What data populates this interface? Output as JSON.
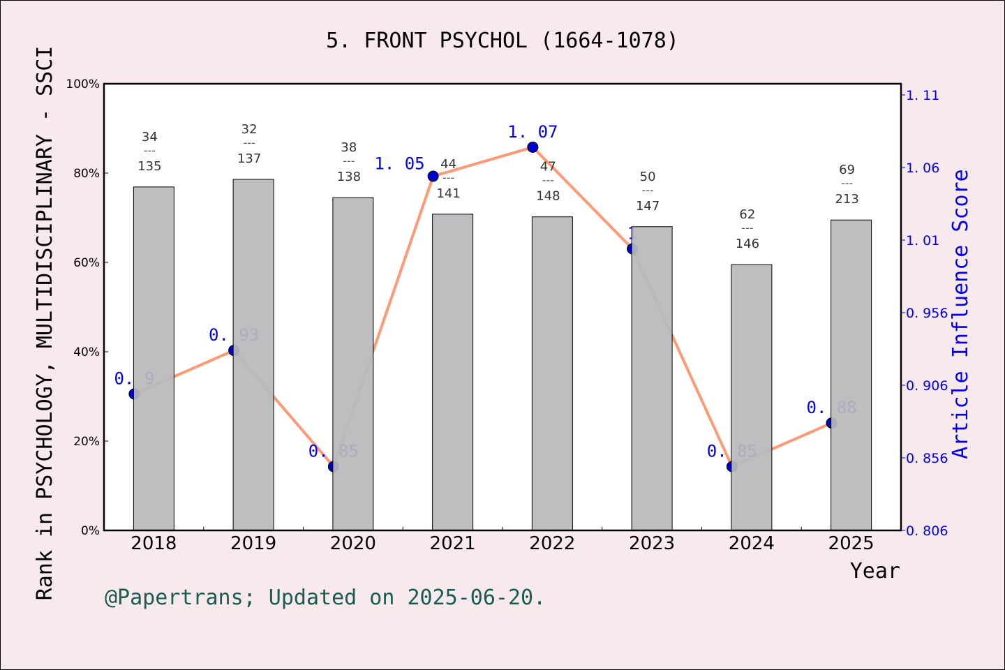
{
  "chart_data": {
    "type": "bar+line",
    "title": "5. FRONT PSYCHOL (1664-1078)",
    "xlabel": "Year",
    "ylabel_left": "Rank in PSYCHOLOGY, MULTIDISCIPLINARY - SSCI",
    "ylabel_right": "Article Influence Score",
    "categories": [
      "2018",
      "2019",
      "2020",
      "2021",
      "2022",
      "2023",
      "2024",
      "2025"
    ],
    "left_axis": {
      "ylim": [
        0,
        100
      ],
      "ticks": [
        "0%",
        "20%",
        "40%",
        "60%",
        "80%",
        "100%"
      ]
    },
    "right_axis": {
      "ylim": [
        0.806,
        1.13
      ],
      "ticks": [
        "0. 806",
        "0. 856",
        "0. 906",
        "0. 956",
        "1. 01",
        "1. 06",
        "1. 11"
      ],
      "tick_values": [
        0.806,
        0.856,
        0.906,
        0.956,
        1.006,
        1.056,
        1.106
      ]
    },
    "bars": {
      "values_percent": [
        76.9,
        78.6,
        74.5,
        70.8,
        70.2,
        68.0,
        59.5,
        69.5
      ],
      "rank": [
        "34",
        "32",
        "38",
        "44",
        "47",
        "50",
        "62",
        "69"
      ],
      "total": [
        "135",
        "137",
        "138",
        "141",
        "148",
        "147",
        "146",
        "213"
      ],
      "separator": "---",
      "color": "#b8b9ba"
    },
    "line": {
      "values": [
        0.9,
        0.93,
        0.85,
        1.05,
        1.07,
        1.0,
        0.85,
        0.88
      ],
      "labels": [
        "0. 9",
        "0. 93",
        "0. 85",
        "1. 05",
        "1. 07",
        "1",
        "0. 85",
        "0. 88"
      ],
      "line_color": "#ff9a76",
      "marker_color": "#0000cc",
      "label_color": "#0000ee"
    },
    "grid": false,
    "legend": "none"
  },
  "footer": "@Papertrans; Updated on 2025-06-20."
}
